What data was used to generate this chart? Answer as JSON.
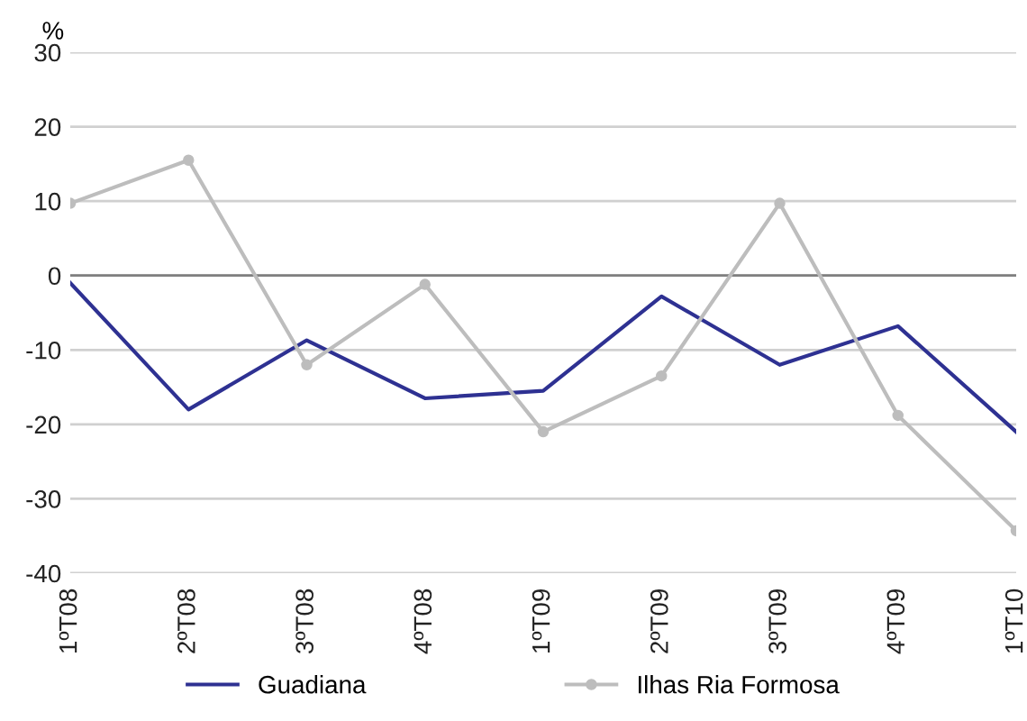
{
  "chart_data": {
    "type": "line",
    "ylabel": "%",
    "categories": [
      "1ºT08",
      "2ºT08",
      "3ºT08",
      "4ºT08",
      "1ºT09",
      "2ºT09",
      "3ºT09",
      "4ºT09",
      "1ºT10"
    ],
    "series": [
      {
        "name": "Guadiana",
        "color": "#2e3192",
        "marker": "none",
        "values": [
          -1,
          -18,
          -8.7,
          -16.5,
          -15.5,
          -2.8,
          -12,
          -6.8,
          -21
        ]
      },
      {
        "name": "Ilhas Ria Formosa",
        "color": "#bdbdbd",
        "marker": "circle",
        "values": [
          9.7,
          15.5,
          -12,
          -1.2,
          -21,
          -13.5,
          9.7,
          -18.8,
          -34.3
        ]
      }
    ],
    "ylim": [
      -40,
      30
    ],
    "yticks": [
      -40,
      -30,
      -20,
      -10,
      0,
      10,
      20,
      30
    ],
    "grid": "y",
    "legend": "bottom",
    "ref_lines": [
      {
        "axis": "y",
        "value": 0,
        "color": "#808080"
      }
    ]
  }
}
